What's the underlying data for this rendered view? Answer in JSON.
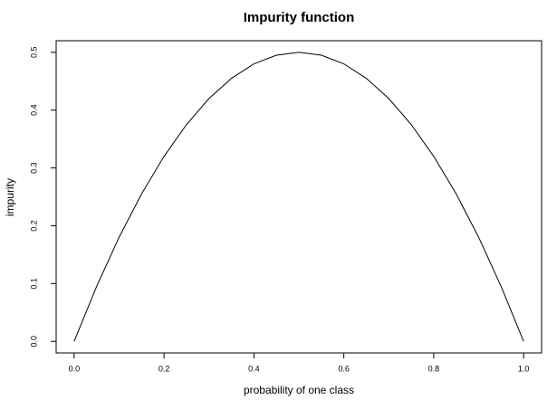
{
  "chart_data": {
    "type": "line",
    "title": "Impurity function",
    "x_label": "probability of one class",
    "y_label": "impurity",
    "series": [
      {
        "color": "#000000",
        "x": [
          0,
          0.05,
          0.1,
          0.15,
          0.2,
          0.25,
          0.3,
          0.35,
          0.4,
          0.45,
          0.5,
          0.55,
          0.6,
          0.65,
          0.7,
          0.75,
          0.8,
          0.85,
          0.9,
          0.95,
          1
        ],
        "values": [
          0,
          0.095,
          0.18,
          0.255,
          0.32,
          0.375,
          0.42,
          0.455,
          0.48,
          0.495,
          0.5,
          0.495,
          0.48,
          0.455,
          0.42,
          0.375,
          0.32,
          0.255,
          0.18,
          0.095,
          0
        ]
      }
    ],
    "xlim": [
      -0.04,
      1.04
    ],
    "ylim": [
      -0.02,
      0.52
    ],
    "xticks": [
      {
        "value": 0,
        "label": "0.0"
      },
      0.2,
      0.4,
      0.6,
      0.8,
      {
        "value": 1,
        "label": "1.0"
      }
    ],
    "yticks": [
      {
        "value": 0,
        "label": "0.0"
      },
      0.1,
      0.2,
      0.3,
      0.4,
      0.5
    ],
    "grid": false
  }
}
